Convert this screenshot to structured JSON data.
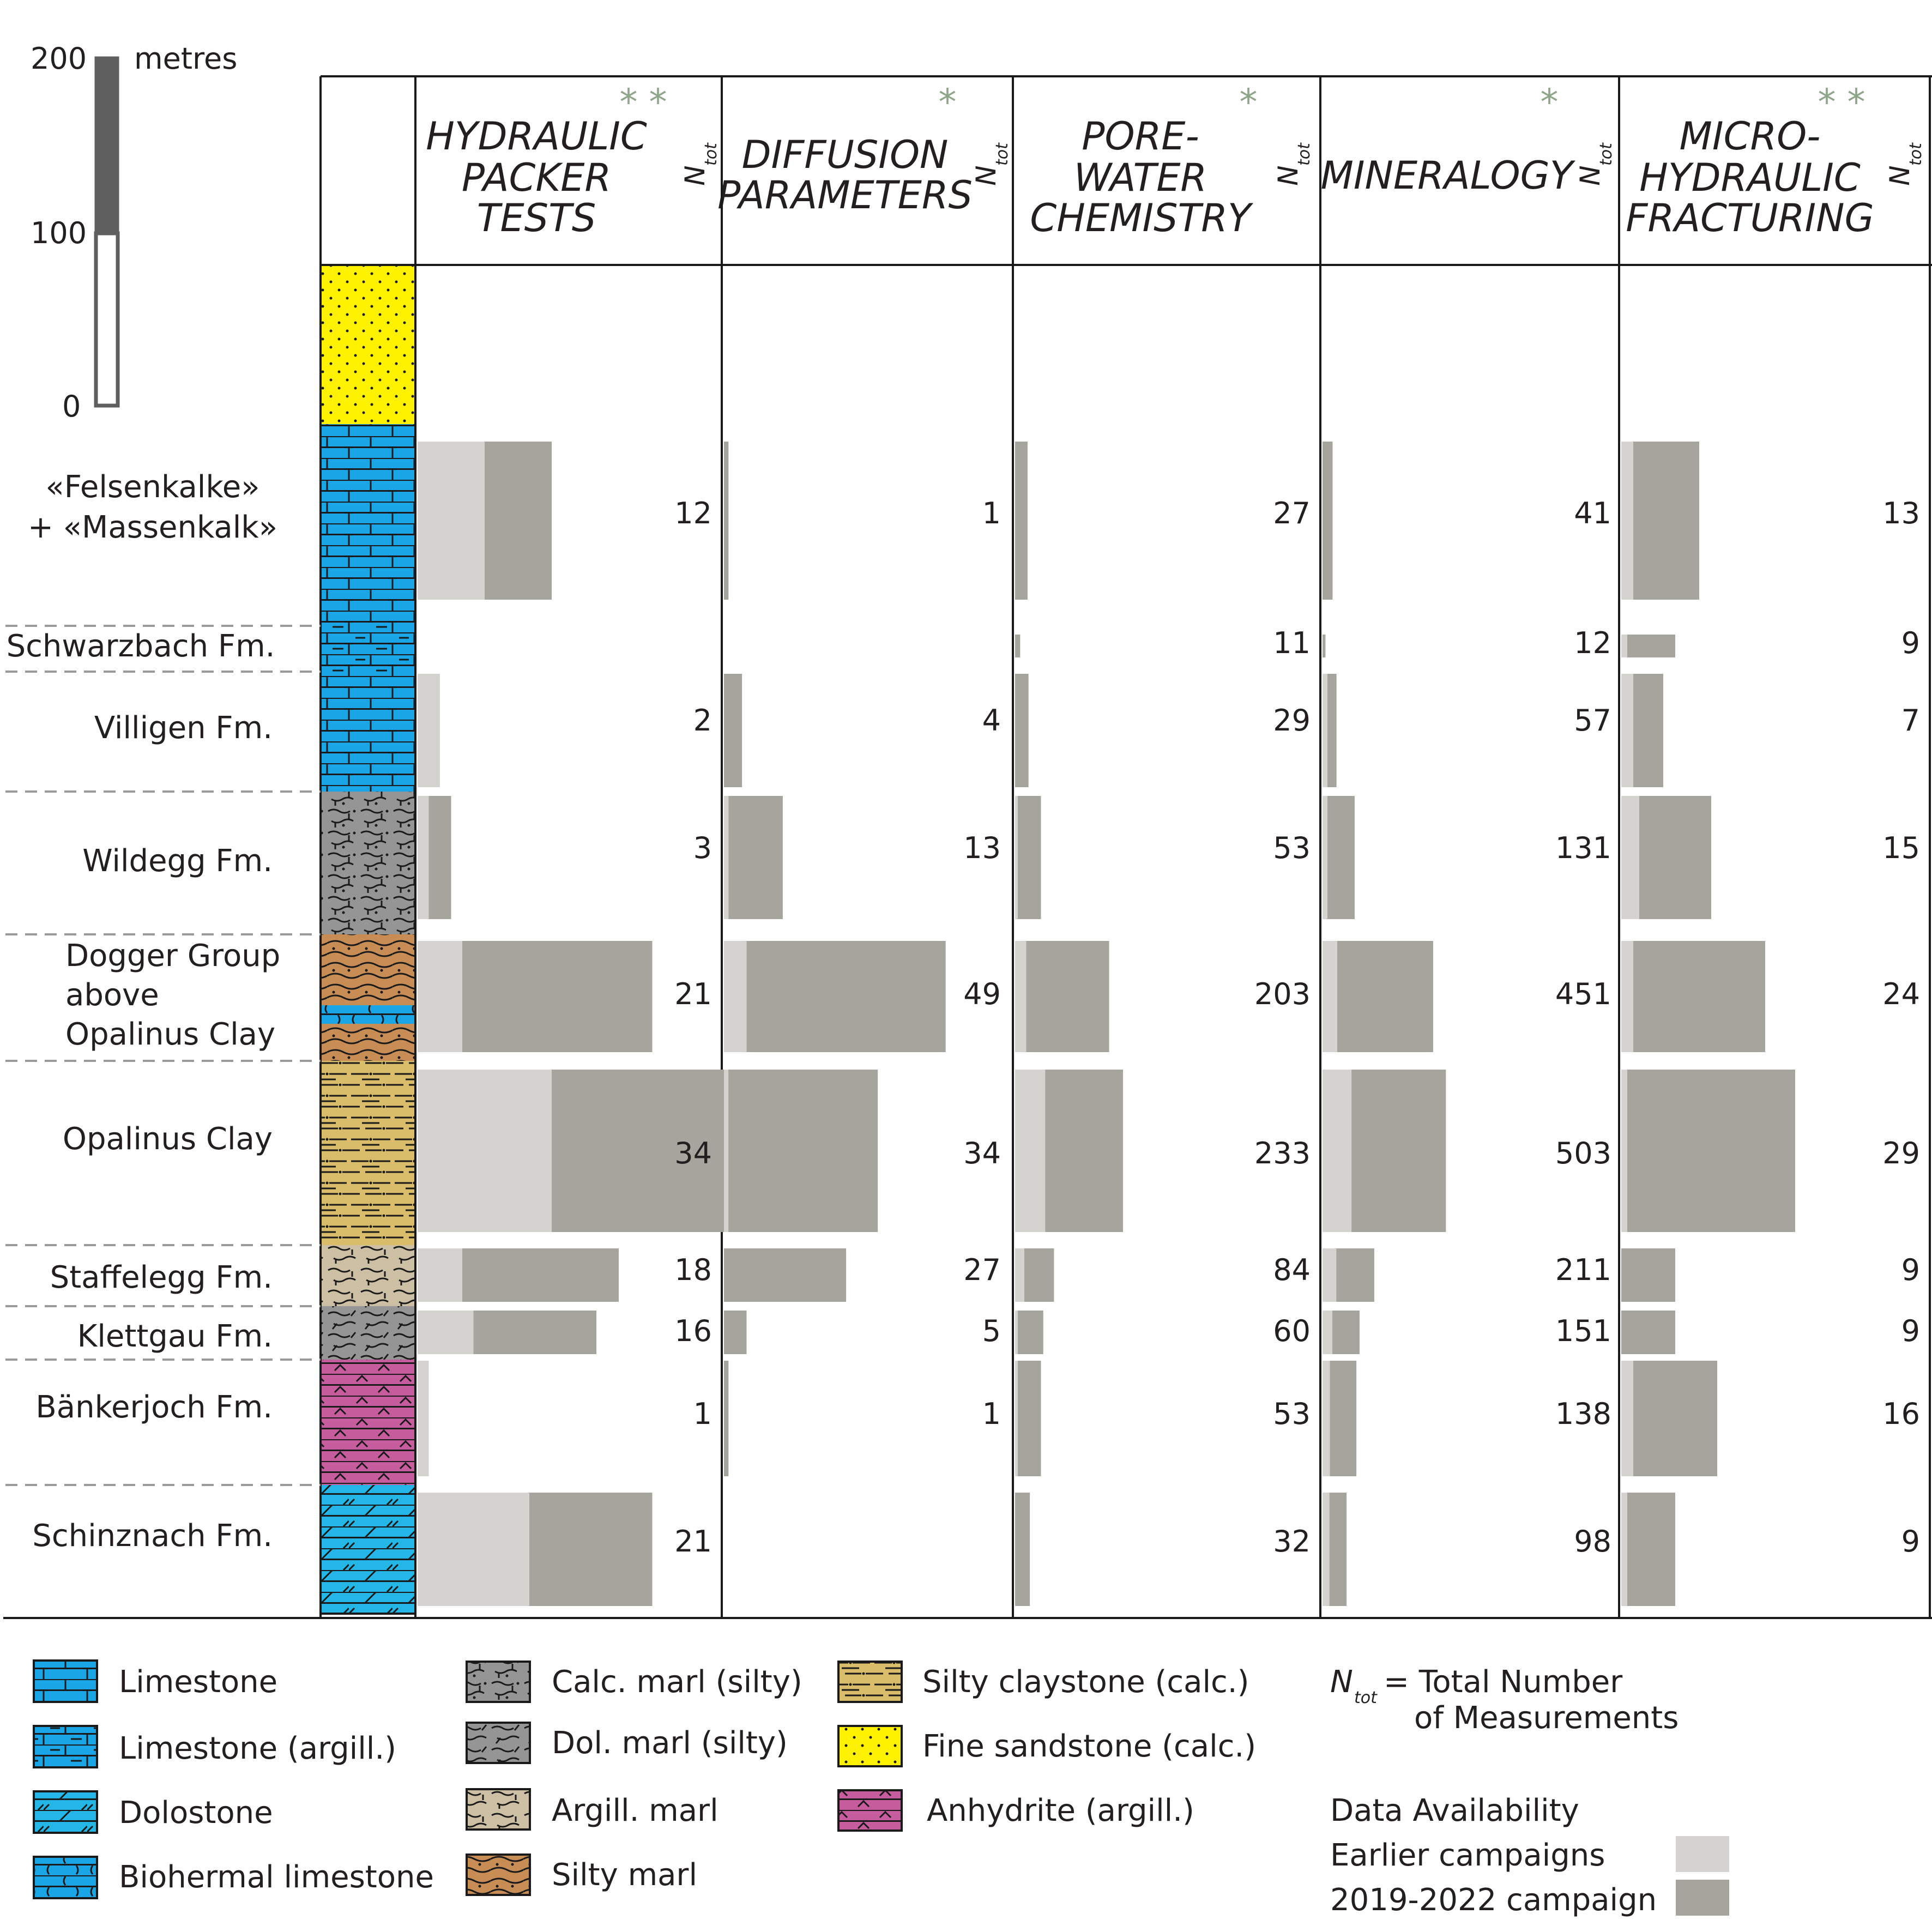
{
  "scale_bar": {
    "unit": "metres",
    "ticks": [
      "200",
      "100",
      "0"
    ]
  },
  "ntot_label": "N",
  "ntot_sub": "tot",
  "columns": [
    {
      "id": "hydraulic",
      "lines": [
        "HYDRAULIC",
        "PACKER",
        "TESTS"
      ],
      "stars": "* *"
    },
    {
      "id": "diffusion",
      "lines": [
        "DIFFUSION",
        "PARAMETERS"
      ],
      "stars": "*"
    },
    {
      "id": "porewater",
      "lines": [
        "PORE-",
        "WATER",
        "CHEMISTRY"
      ],
      "stars": "*"
    },
    {
      "id": "mineralogy",
      "lines": [
        "MINERALOGY"
      ],
      "stars": "*"
    },
    {
      "id": "microfrac",
      "lines": [
        "MICRO-",
        "HYDRAULIC",
        "FRACTURING"
      ],
      "stars": "* *"
    }
  ],
  "formations": [
    {
      "lines": [
        "«Felsenkalke»",
        "+ «Massenkalk»"
      ],
      "values": [
        {
          "e": 6,
          "n": 6,
          "t": "12"
        },
        {
          "e": 0,
          "n": 1,
          "t": "1"
        },
        {
          "e": 0,
          "n": 27,
          "t": "27"
        },
        {
          "e": 0,
          "n": 41,
          "t": "41"
        },
        {
          "e": 2,
          "n": 11,
          "t": "13"
        }
      ]
    },
    {
      "lines": [
        "Schwarzbach Fm."
      ],
      "values": [
        {
          "e": 0,
          "n": 0,
          "t": ""
        },
        {
          "e": 0,
          "n": 0,
          "t": ""
        },
        {
          "e": 0,
          "n": 11,
          "t": "11"
        },
        {
          "e": 0,
          "n": 12,
          "t": "12"
        },
        {
          "e": 1,
          "n": 8,
          "t": "9"
        }
      ]
    },
    {
      "lines": [
        "Villigen Fm."
      ],
      "values": [
        {
          "e": 2,
          "n": 0,
          "t": "2"
        },
        {
          "e": 0,
          "n": 4,
          "t": "4"
        },
        {
          "e": 0,
          "n": 29,
          "t": "29"
        },
        {
          "e": 20,
          "n": 37,
          "t": "57"
        },
        {
          "e": 2,
          "n": 5,
          "t": "7"
        }
      ]
    },
    {
      "lines": [
        "Wildegg Fm."
      ],
      "values": [
        {
          "e": 1,
          "n": 2,
          "t": "3"
        },
        {
          "e": 1,
          "n": 12,
          "t": "13"
        },
        {
          "e": 3,
          "n": 50,
          "t": "53"
        },
        {
          "e": 20,
          "n": 111,
          "t": "131"
        },
        {
          "e": 3,
          "n": 12,
          "t": "15"
        }
      ]
    },
    {
      "lines": [
        "Dogger Group",
        "above",
        "Opalinus Clay"
      ],
      "values": [
        {
          "e": 4,
          "n": 17,
          "t": "21"
        },
        {
          "e": 5,
          "n": 44,
          "t": "49"
        },
        {
          "e": 24,
          "n": 179,
          "t": "203"
        },
        {
          "e": 60,
          "n": 391,
          "t": "451"
        },
        {
          "e": 2,
          "n": 22,
          "t": "24"
        }
      ]
    },
    {
      "lines": [
        "Opalinus Clay"
      ],
      "values": [
        {
          "e": 12,
          "n": 22,
          "t": "34"
        },
        {
          "e": 1,
          "n": 33,
          "t": "34"
        },
        {
          "e": 65,
          "n": 168,
          "t": "233"
        },
        {
          "e": 118,
          "n": 385,
          "t": "503"
        },
        {
          "e": 1,
          "n": 28,
          "t": "29"
        }
      ]
    },
    {
      "lines": [
        "Staffelegg Fm."
      ],
      "values": [
        {
          "e": 4,
          "n": 14,
          "t": "18"
        },
        {
          "e": 0,
          "n": 27,
          "t": "27"
        },
        {
          "e": 20,
          "n": 64,
          "t": "84"
        },
        {
          "e": 56,
          "n": 155,
          "t": "211"
        },
        {
          "e": 0,
          "n": 9,
          "t": "9"
        }
      ]
    },
    {
      "lines": [
        "Klettgau Fm."
      ],
      "values": [
        {
          "e": 5,
          "n": 11,
          "t": "16"
        },
        {
          "e": 0,
          "n": 5,
          "t": "5"
        },
        {
          "e": 5,
          "n": 55,
          "t": "60"
        },
        {
          "e": 40,
          "n": 111,
          "t": "151"
        },
        {
          "e": 0,
          "n": 9,
          "t": "9"
        }
      ]
    },
    {
      "lines": [
        "Bänkerjoch Fm."
      ],
      "values": [
        {
          "e": 1,
          "n": 0,
          "t": "1"
        },
        {
          "e": 0,
          "n": 1,
          "t": "1"
        },
        {
          "e": 3,
          "n": 50,
          "t": "53"
        },
        {
          "e": 30,
          "n": 108,
          "t": "138"
        },
        {
          "e": 2,
          "n": 14,
          "t": "16"
        }
      ]
    },
    {
      "lines": [
        "Schinznach Fm."
      ],
      "values": [
        {
          "e": 10,
          "n": 11,
          "t": "21"
        },
        {
          "e": 0,
          "n": 0,
          "t": ""
        },
        {
          "e": 0,
          "n": 32,
          "t": "32"
        },
        {
          "e": 28,
          "n": 70,
          "t": "98"
        },
        {
          "e": 1,
          "n": 8,
          "t": "9"
        }
      ]
    }
  ],
  "legend": {
    "col1": [
      "Limestone",
      "Limestone (argill.)",
      "Dolostone",
      "Biohermal limestone"
    ],
    "col2": [
      "Calc. marl (silty)",
      "Dol. marl (silty)",
      "Argill. marl",
      "Silty marl"
    ],
    "col3": [
      "Silty claystone (calc.)",
      "Fine sandstone (calc.)",
      "Anhydrite (argill.)"
    ],
    "ntot_def_1": "= Total Number",
    "ntot_def_2": "of Measurements",
    "availability_title": "Data Availability",
    "earlier": "Earlier campaigns",
    "recent": "2019-2022 campaign"
  },
  "colors": {
    "earlier": "#d5d3cf",
    "recent": "#a5a59d",
    "limestone": "#1aa6e6",
    "dolostone": "#23b6e6",
    "grey_marl": "#959595",
    "argill_marl": "#cdbfa3",
    "silty_marl": "#c88d55",
    "silty_clay": "#d9bd6a",
    "sandstone": "#fef200",
    "anhydrite": "#c65c9c",
    "star": "#8ea58a"
  }
}
